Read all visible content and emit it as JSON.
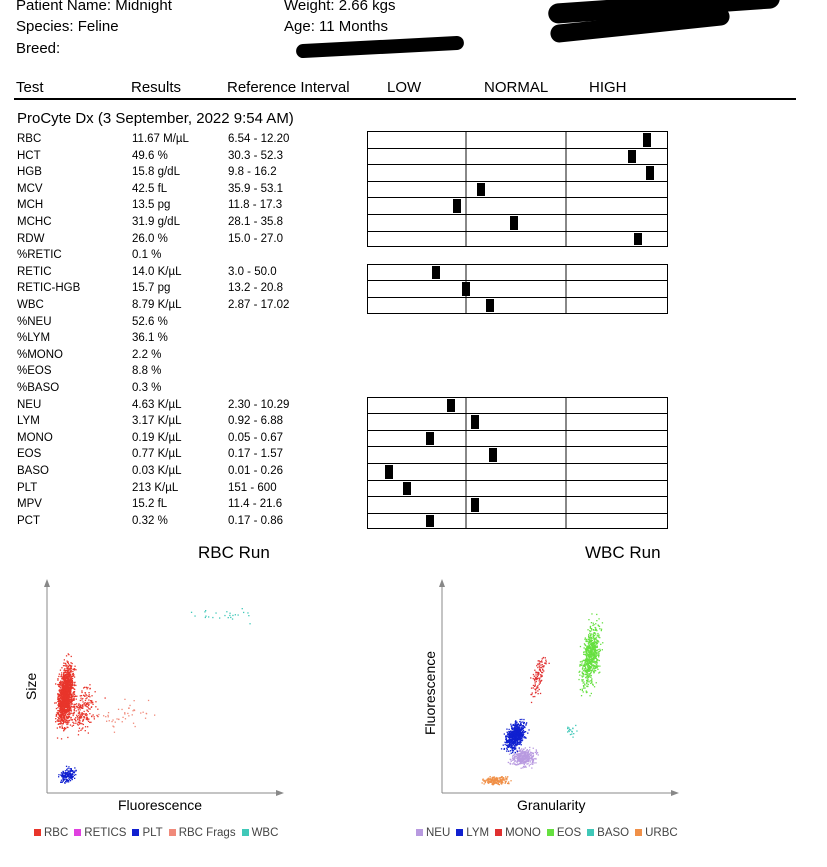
{
  "patient": {
    "name_label": "Patient Name: Midnight",
    "species_label": "Species: Feline",
    "breed_label": "Breed:",
    "weight_label": "Weight: 2.66 kgs",
    "age_label": "Age: 11 Months"
  },
  "columns": {
    "test": "Test",
    "results": "Results",
    "reference": "Reference Interval",
    "low": "LOW",
    "normal": "NORMAL",
    "high": "HIGH"
  },
  "section_title": "ProCyte Dx (3 September, 2022 9:54 AM)",
  "rows": [
    {
      "test": "RBC",
      "result": "11.67 M/µL",
      "ref": "6.54 - 12.20",
      "gauge": true,
      "pos": 0.94
    },
    {
      "test": "HCT",
      "result": "49.6 %",
      "ref": "30.3 - 52.3",
      "gauge": true,
      "pos": 0.89
    },
    {
      "test": "HGB",
      "result": "15.8 g/dL",
      "ref": "9.8 - 16.2",
      "gauge": true,
      "pos": 0.95
    },
    {
      "test": "MCV",
      "result": "42.5 fL",
      "ref": "35.9 - 53.1",
      "gauge": true,
      "pos": 0.38
    },
    {
      "test": "MCH",
      "result": "13.5 pg",
      "ref": "11.8 - 17.3",
      "gauge": true,
      "pos": 0.3
    },
    {
      "test": "MCHC",
      "result": "31.9 g/dL",
      "ref": "28.1 - 35.8",
      "gauge": true,
      "pos": 0.49
    },
    {
      "test": "RDW",
      "result": "26.0 %",
      "ref": "15.0 - 27.0",
      "gauge": true,
      "pos": 0.91
    },
    {
      "test": "%RETIC",
      "result": "0.1 %",
      "ref": "",
      "gauge": false
    },
    {
      "test": "RETIC",
      "result": "14.0 K/µL",
      "ref": "3.0 - 50.0",
      "gauge": true,
      "pos": 0.23
    },
    {
      "test": "RETIC-HGB",
      "result": "15.7 pg",
      "ref": "13.2 - 20.8",
      "gauge": true,
      "pos": 0.33
    },
    {
      "test": "WBC",
      "result": "8.79 K/µL",
      "ref": "2.87 - 17.02",
      "gauge": true,
      "pos": 0.41
    },
    {
      "test": "%NEU",
      "result": "52.6 %",
      "ref": "",
      "gauge": false
    },
    {
      "test": "%LYM",
      "result": "36.1 %",
      "ref": "",
      "gauge": false
    },
    {
      "test": "%MONO",
      "result": "2.2 %",
      "ref": "",
      "gauge": false
    },
    {
      "test": "%EOS",
      "result": "8.8 %",
      "ref": "",
      "gauge": false
    },
    {
      "test": "%BASO",
      "result": "0.3 %",
      "ref": "",
      "gauge": false
    },
    {
      "test": "NEU",
      "result": "4.63 K/µL",
      "ref": "2.30 - 10.29",
      "gauge": true,
      "pos": 0.28
    },
    {
      "test": "LYM",
      "result": "3.17 K/µL",
      "ref": "0.92 - 6.88",
      "gauge": true,
      "pos": 0.36
    },
    {
      "test": "MONO",
      "result": "0.19 K/µL",
      "ref": "0.05 - 0.67",
      "gauge": true,
      "pos": 0.21
    },
    {
      "test": "EOS",
      "result": "0.77 K/µL",
      "ref": "0.17 - 1.57",
      "gauge": true,
      "pos": 0.42
    },
    {
      "test": "BASO",
      "result": "0.03 K/µL",
      "ref": "0.01 - 0.26",
      "gauge": true,
      "pos": 0.07
    },
    {
      "test": "PLT",
      "result": "213 K/µL",
      "ref": "151 - 600",
      "gauge": true,
      "pos": 0.13
    },
    {
      "test": "MPV",
      "result": "15.2 fL",
      "ref": "11.4 - 21.6",
      "gauge": true,
      "pos": 0.36
    },
    {
      "test": "PCT",
      "result": "0.32 %",
      "ref": "0.17 - 0.86",
      "gauge": true,
      "pos": 0.21
    }
  ],
  "rbc_run": {
    "title": "RBC Run",
    "xlabel": "Fluorescence",
    "ylabel": "Size",
    "legend": [
      {
        "label": "RBC",
        "color": "#e8352b"
      },
      {
        "label": "RETICS",
        "color": "#e040e0"
      },
      {
        "label": "PLT",
        "color": "#1020d0"
      },
      {
        "label": "RBC Frags",
        "color": "#f08a7a"
      },
      {
        "label": "WBC",
        "color": "#40c8b8"
      }
    ]
  },
  "wbc_run": {
    "title": "WBC Run",
    "xlabel": "Granularity",
    "ylabel": "Fluorescence",
    "legend": [
      {
        "label": "NEU",
        "color": "#b89ae0"
      },
      {
        "label": "LYM",
        "color": "#1020d0"
      },
      {
        "label": "MONO",
        "color": "#e03030"
      },
      {
        "label": "EOS",
        "color": "#66e040"
      },
      {
        "label": "BASO",
        "color": "#40c8b8"
      },
      {
        "label": "URBC",
        "color": "#f09048"
      }
    ]
  }
}
